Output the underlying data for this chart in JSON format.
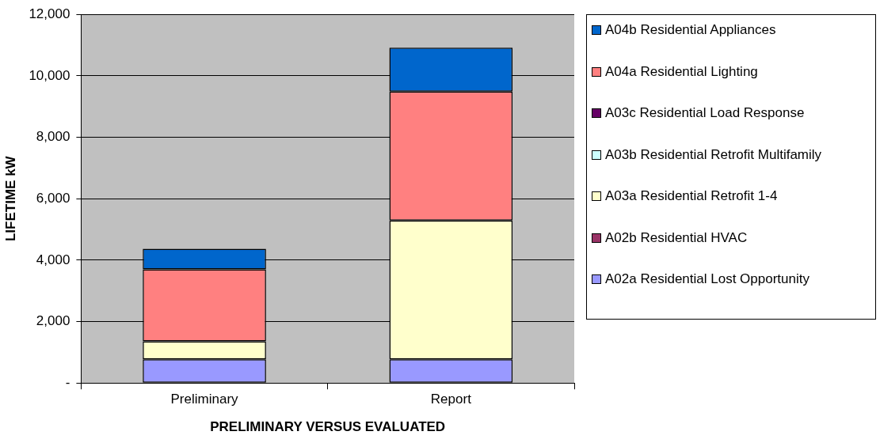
{
  "chart_data": {
    "type": "bar",
    "stacked": true,
    "xlabel": "PRELIMINARY VERSUS EVALUATED",
    "ylabel": "LIFETIME kW",
    "categories": [
      "Preliminary",
      "Report"
    ],
    "series": [
      {
        "name": "A02a Residential Lost Opportunity",
        "color": "#9999ff",
        "values": [
          770,
          770
        ]
      },
      {
        "name": "A02b Residential HVAC",
        "color": "#993366",
        "values": [
          0,
          0
        ]
      },
      {
        "name": "A03a Residential Retrofit 1-4",
        "color": "#ffffcc",
        "values": [
          590,
          4520
        ]
      },
      {
        "name": "A03b Residential Retrofit Multifamily",
        "color": "#ccffff",
        "values": [
          0,
          0
        ]
      },
      {
        "name": "A03c Residential Load Response",
        "color": "#660066",
        "values": [
          0,
          0
        ]
      },
      {
        "name": "A04a Residential Lighting",
        "color": "#ff8080",
        "values": [
          2340,
          4200
        ]
      },
      {
        "name": "A04b Residential Appliances",
        "color": "#0066cc",
        "values": [
          670,
          1430
        ]
      }
    ],
    "ylim": [
      0,
      12000
    ],
    "yticks": [
      {
        "value": 0,
        "label": "-"
      },
      {
        "value": 2000,
        "label": "2,000"
      },
      {
        "value": 4000,
        "label": "4,000"
      },
      {
        "value": 6000,
        "label": "6,000"
      },
      {
        "value": 8000,
        "label": "8,000"
      },
      {
        "value": 10000,
        "label": "10,000"
      },
      {
        "value": 12000,
        "label": "12,000"
      }
    ],
    "grid": "y",
    "legend": "right"
  }
}
